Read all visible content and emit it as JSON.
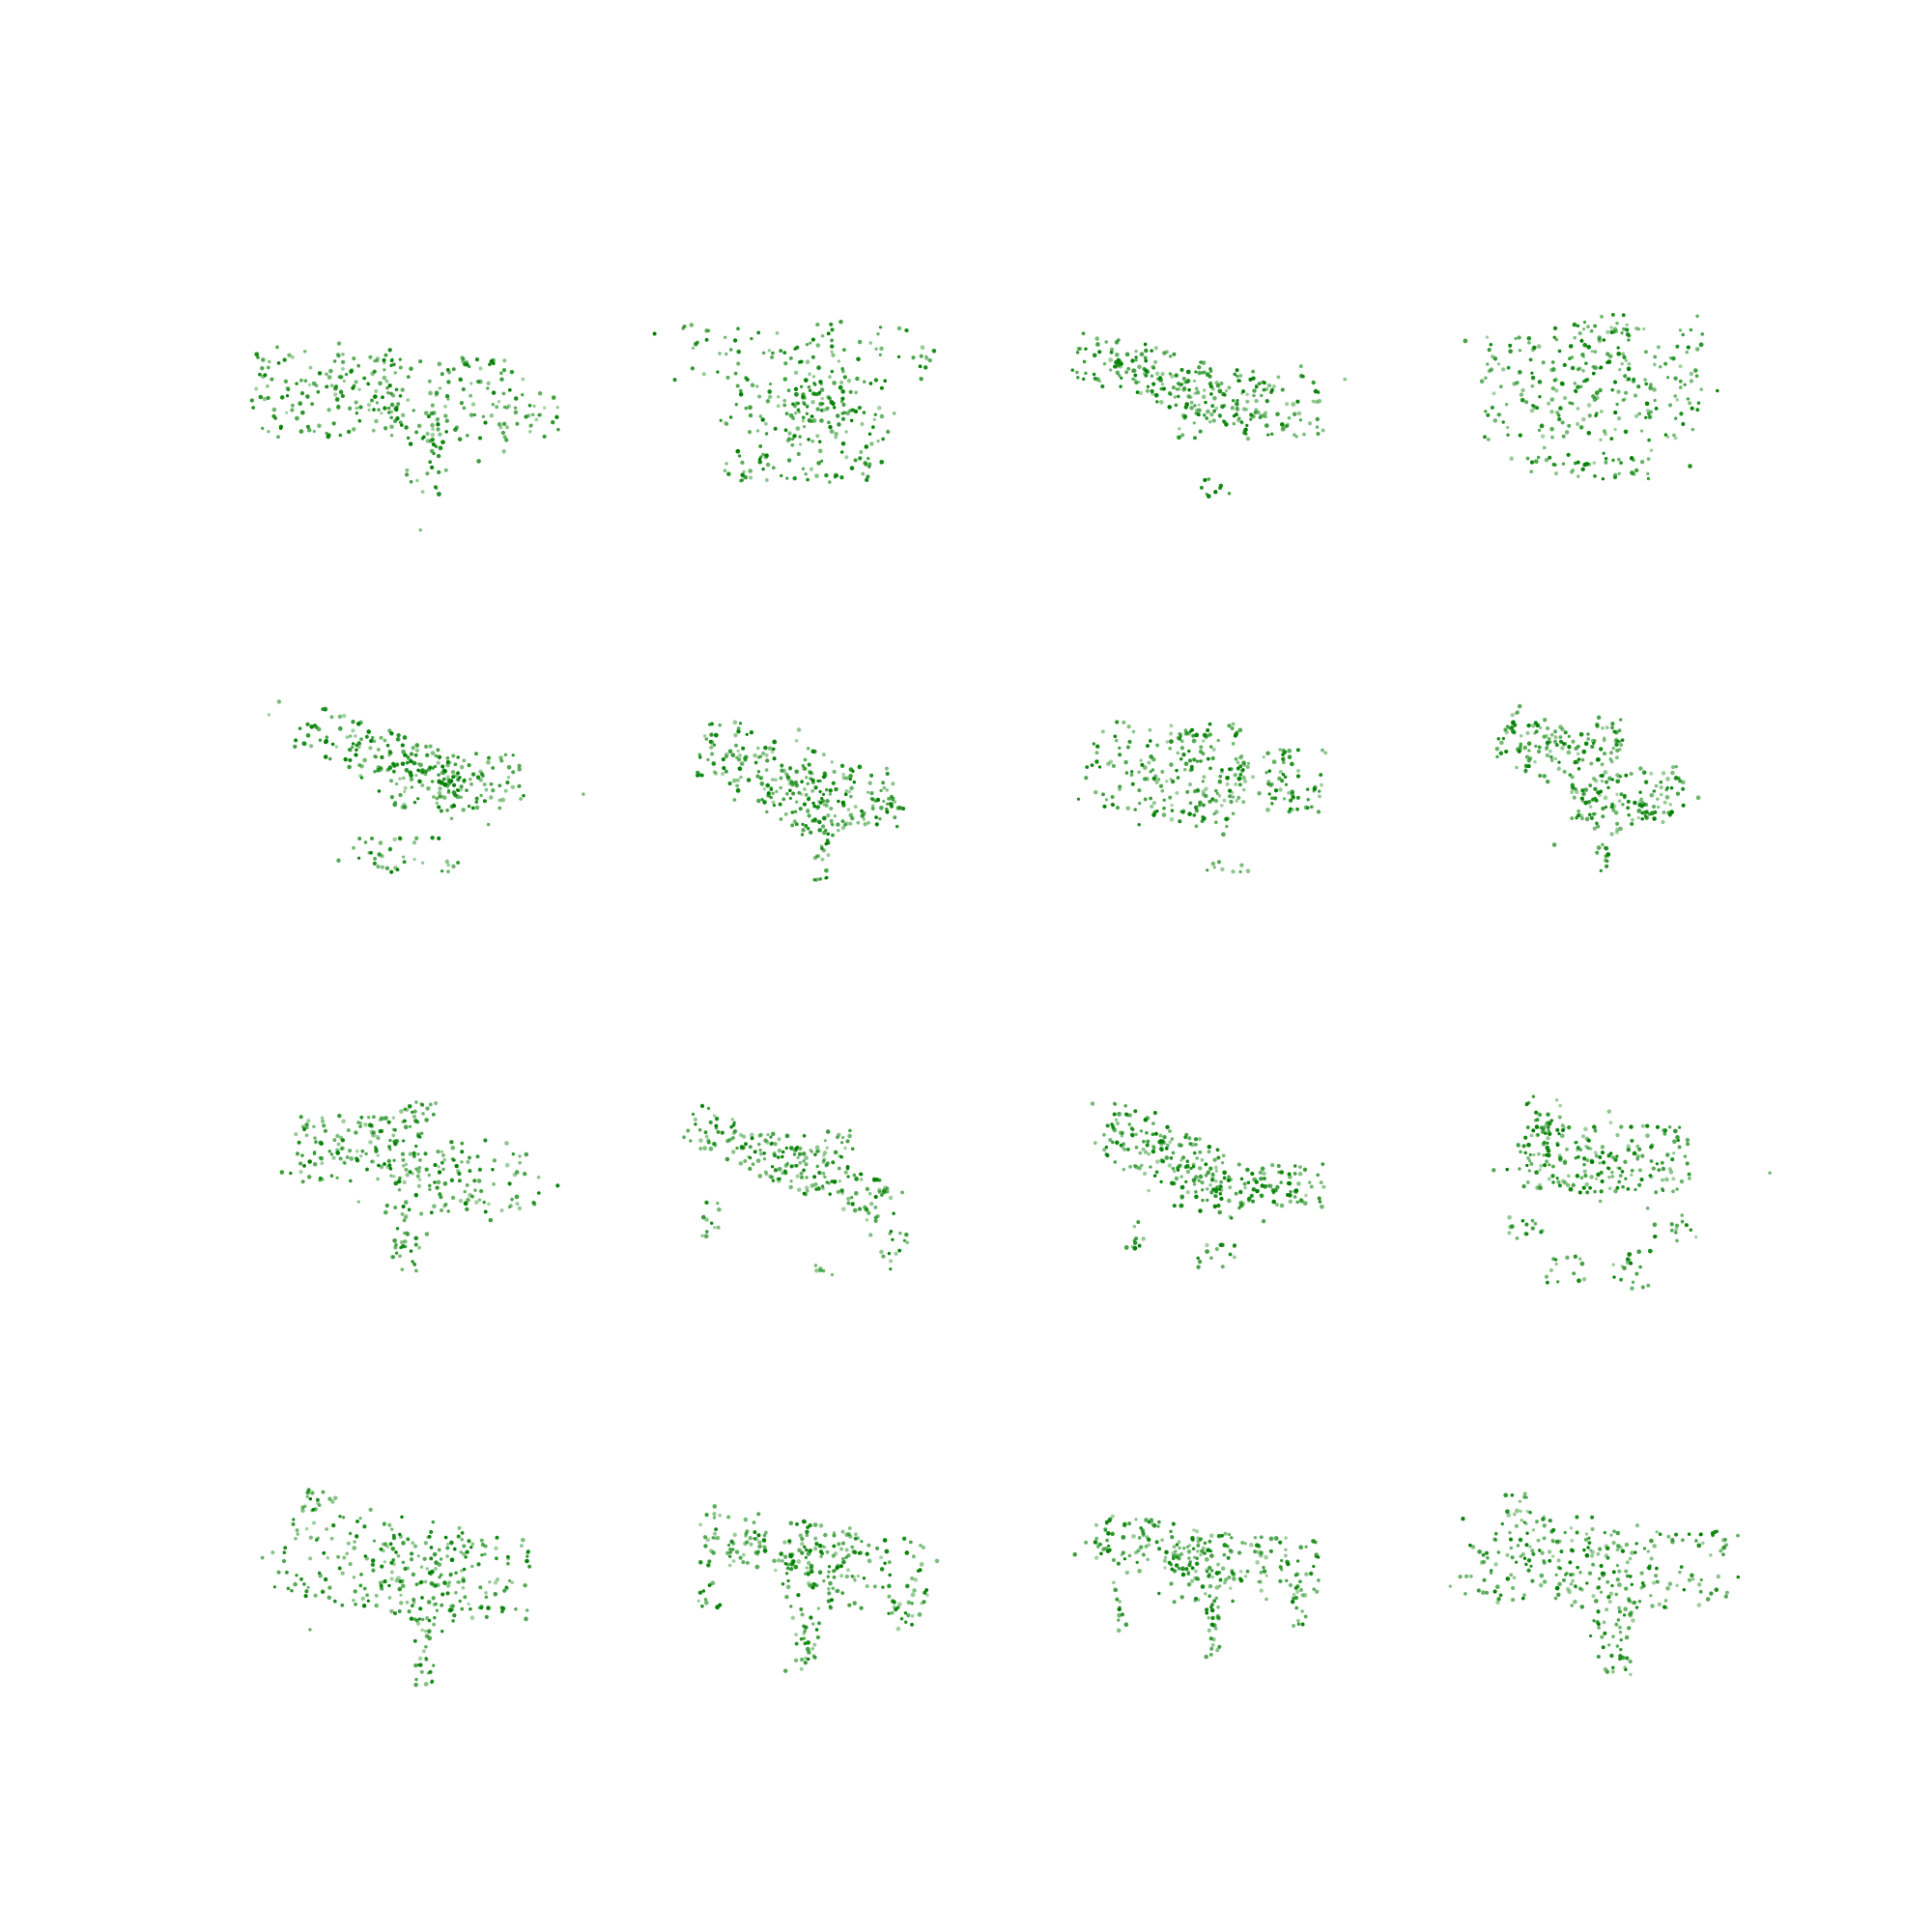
{
  "figure": {
    "background": "#ffffff",
    "point_color": "#008000",
    "rows": 4,
    "cols": 4
  },
  "chart_data": [
    {
      "type": "scatter",
      "panel": 1,
      "shape": "wide-left-heavy with bottom leg",
      "axes_visible": false,
      "color": "#008000",
      "points": 320
    },
    {
      "type": "scatter",
      "panel": 2,
      "shape": "boxy with wide top",
      "axes_visible": false,
      "color": "#008000",
      "points": 300
    },
    {
      "type": "scatter",
      "panel": 3,
      "shape": "diagonal band",
      "axes_visible": false,
      "color": "#008000",
      "points": 300
    },
    {
      "type": "scatter",
      "panel": 4,
      "shape": "square block",
      "axes_visible": false,
      "color": "#008000",
      "points": 320
    },
    {
      "type": "scatter",
      "panel": 5,
      "shape": "diagonal wedge",
      "axes_visible": false,
      "color": "#008000",
      "points": 300
    },
    {
      "type": "scatter",
      "panel": 6,
      "shape": "diagonal with bottom leg",
      "axes_visible": false,
      "color": "#008000",
      "points": 300
    },
    {
      "type": "scatter",
      "panel": 7,
      "shape": "tilted slab",
      "axes_visible": false,
      "color": "#008000",
      "points": 300
    },
    {
      "type": "scatter",
      "panel": 8,
      "shape": "sagging band",
      "axes_visible": false,
      "color": "#008000",
      "points": 300
    },
    {
      "type": "scatter",
      "panel": 9,
      "shape": "wide-left-heavy with bottom leg",
      "axes_visible": false,
      "color": "#008000",
      "points": 300
    },
    {
      "type": "scatter",
      "panel": 10,
      "shape": "thin diagonal band",
      "axes_visible": false,
      "color": "#008000",
      "points": 260
    },
    {
      "type": "scatter",
      "panel": 11,
      "shape": "diagonal with legs",
      "axes_visible": false,
      "color": "#008000",
      "points": 300
    },
    {
      "type": "scatter",
      "panel": 12,
      "shape": "dense core with splayed legs",
      "axes_visible": false,
      "color": "#008000",
      "points": 300
    },
    {
      "type": "scatter",
      "panel": 13,
      "shape": "wide slab with bottom leg",
      "axes_visible": false,
      "color": "#008000",
      "points": 320
    },
    {
      "type": "scatter",
      "panel": 14,
      "shape": "wide slab with legs",
      "axes_visible": false,
      "color": "#008000",
      "points": 300
    },
    {
      "type": "scatter",
      "panel": 15,
      "shape": "slab with legs",
      "axes_visible": false,
      "color": "#008000",
      "points": 300
    },
    {
      "type": "scatter",
      "panel": 16,
      "shape": "wide slab with bottom leg",
      "axes_visible": false,
      "color": "#008000",
      "points": 320
    }
  ]
}
